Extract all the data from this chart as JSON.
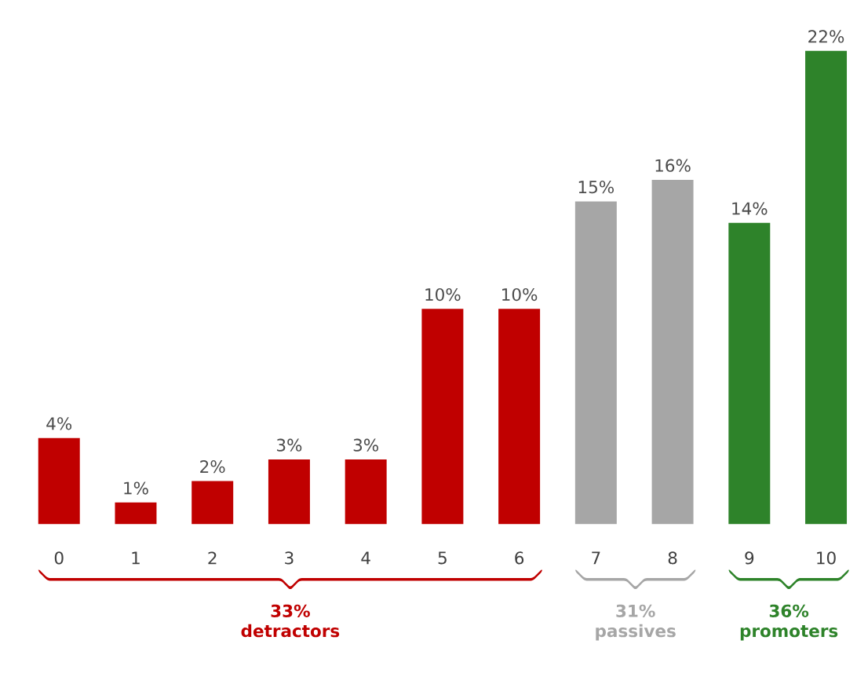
{
  "chart_data": {
    "type": "bar",
    "categories": [
      "0",
      "1",
      "2",
      "3",
      "4",
      "5",
      "6",
      "7",
      "8",
      "9",
      "10"
    ],
    "series": [
      {
        "color": "#c00000",
        "values": [
          4,
          1,
          2,
          3,
          3,
          10,
          10,
          null,
          null,
          null,
          null
        ],
        "value_labels": [
          "4%",
          "1%",
          "2%",
          "3%",
          "3%",
          "10%",
          "10%",
          null,
          null,
          null,
          null
        ]
      },
      {
        "color": "#a6a6a6",
        "values": [
          null,
          null,
          null,
          null,
          null,
          null,
          null,
          15,
          16,
          null,
          null
        ],
        "value_labels": [
          null,
          null,
          null,
          null,
          null,
          null,
          null,
          "15%",
          "16%",
          null,
          null
        ]
      },
      {
        "color": "#2e832a",
        "values": [
          null,
          null,
          null,
          null,
          null,
          null,
          null,
          null,
          null,
          14,
          22
        ],
        "value_labels": [
          null,
          null,
          null,
          null,
          null,
          null,
          null,
          null,
          null,
          "14%",
          "22%"
        ]
      }
    ],
    "annotations": [
      "33% detractors",
      "31% passives",
      "36% promoters"
    ]
  }
}
